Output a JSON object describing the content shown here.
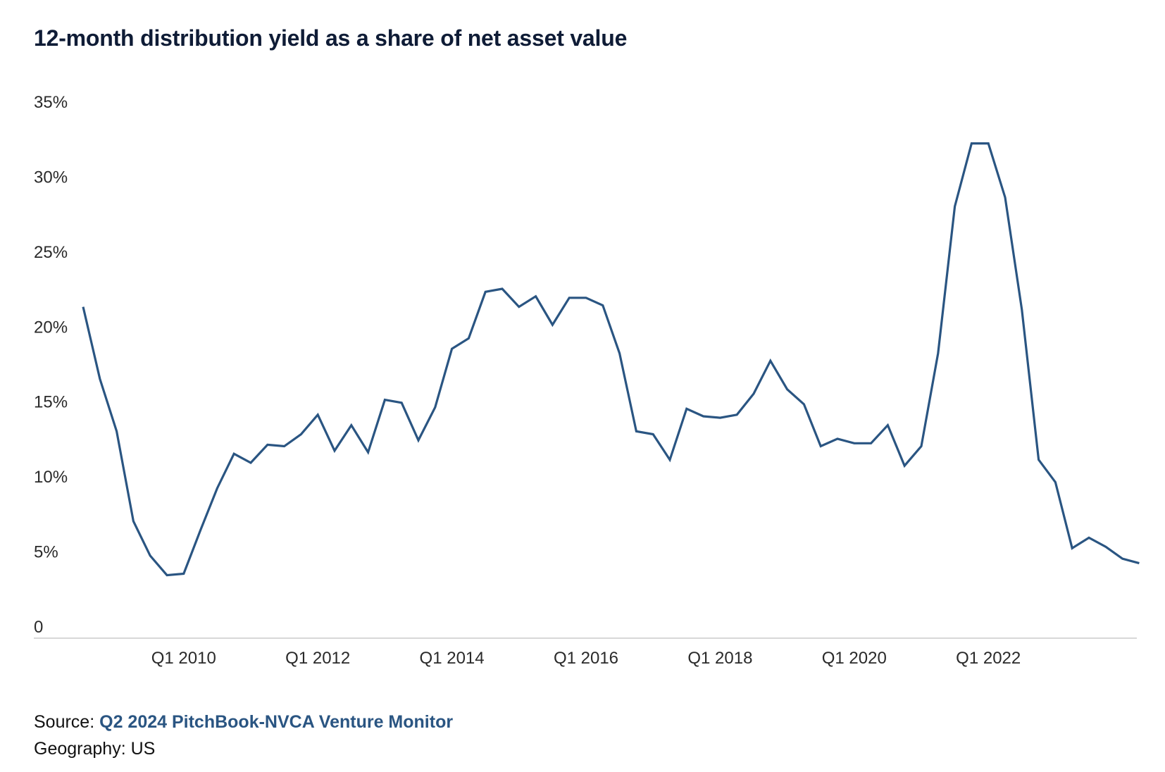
{
  "title": "12-month distribution yield as a share of net asset value",
  "footer": {
    "source_label": "Source:",
    "source_link": "Q2 2024 PitchBook-NVCA Venture Monitor",
    "geography": "Geography: US"
  },
  "colors": {
    "line": "#2a5582",
    "axis": "#cccccc",
    "source_link": "#2a5582"
  },
  "chart_data": {
    "type": "line",
    "title": "12-month distribution yield as a share of net asset value",
    "xlabel": "",
    "ylabel": "",
    "y_ticks": [
      "0",
      "5%",
      "10%",
      "15%",
      "20%",
      "25%",
      "30%",
      "35%"
    ],
    "ylim": [
      0,
      35
    ],
    "x_ticks": [
      "Q1 2010",
      "Q1 2012",
      "Q1 2014",
      "Q1 2016",
      "Q1 2018",
      "Q1 2020",
      "Q1 2022"
    ],
    "grid": false,
    "legend": "none",
    "x": [
      "Q3 2008",
      "Q4 2008",
      "Q1 2009",
      "Q2 2009",
      "Q3 2009",
      "Q4 2009",
      "Q1 2010",
      "Q2 2010",
      "Q3 2010",
      "Q4 2010",
      "Q1 2011",
      "Q2 2011",
      "Q3 2011",
      "Q4 2011",
      "Q1 2012",
      "Q2 2012",
      "Q3 2012",
      "Q4 2012",
      "Q1 2013",
      "Q2 2013",
      "Q3 2013",
      "Q4 2013",
      "Q1 2014",
      "Q2 2014",
      "Q3 2014",
      "Q4 2014",
      "Q1 2015",
      "Q2 2015",
      "Q3 2015",
      "Q4 2015",
      "Q1 2016",
      "Q2 2016",
      "Q3 2016",
      "Q4 2016",
      "Q1 2017",
      "Q2 2017",
      "Q3 2017",
      "Q4 2017",
      "Q1 2018",
      "Q2 2018",
      "Q3 2018",
      "Q4 2018",
      "Q1 2019",
      "Q2 2019",
      "Q3 2019",
      "Q4 2019",
      "Q1 2020",
      "Q2 2020",
      "Q3 2020",
      "Q4 2020",
      "Q1 2021",
      "Q2 2021",
      "Q3 2021",
      "Q4 2021",
      "Q1 2022",
      "Q2 2022",
      "Q3 2022",
      "Q4 2022",
      "Q1 2023",
      "Q2 2023",
      "Q3 2023",
      "Q4 2023",
      "Q1 2024",
      "Q2 2024"
    ],
    "series": [
      {
        "values": [
          22.1,
          17.3,
          13.8,
          7.8,
          5.5,
          4.2,
          4.3,
          7.2,
          10.0,
          12.3,
          11.7,
          12.9,
          12.8,
          13.6,
          14.9,
          12.5,
          14.2,
          12.4,
          15.9,
          15.7,
          13.2,
          15.4,
          19.3,
          20.0,
          23.1,
          23.3,
          22.1,
          22.8,
          20.9,
          22.7,
          22.7,
          22.2,
          19.0,
          13.8,
          13.6,
          11.9,
          15.3,
          14.8,
          14.7,
          14.9,
          16.3,
          18.5,
          16.6,
          15.6,
          12.8,
          13.3,
          13.0,
          13.0,
          14.2,
          11.5,
          12.8,
          19.0,
          28.8,
          33.0,
          33.0,
          29.4,
          21.9,
          11.9,
          10.4,
          6.0,
          6.7,
          6.1,
          5.3,
          5.0
        ]
      }
    ]
  }
}
